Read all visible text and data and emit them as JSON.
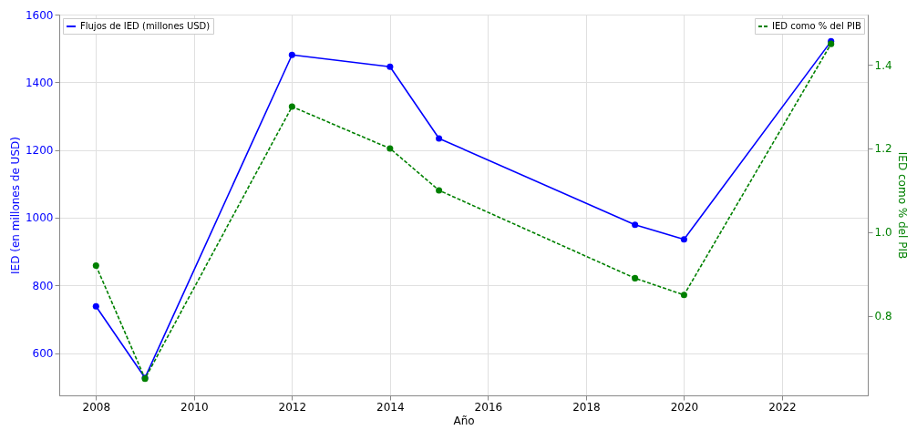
{
  "chart_data": {
    "type": "line",
    "xlabel": "Año",
    "ylabel": "IED (en millones de USD)",
    "y2label": "IED como % del PIB",
    "x": [
      2008,
      2009,
      2012,
      2014,
      2015,
      2019,
      2020,
      2023
    ],
    "xlim": [
      2007.25,
      2023.75
    ],
    "xticks": [
      2008,
      2010,
      2012,
      2014,
      2016,
      2018,
      2020,
      2022
    ],
    "ylim": [
      475,
      1600
    ],
    "yticks": [
      600,
      800,
      1000,
      1200,
      1400,
      1600
    ],
    "y2lim": [
      0.61,
      1.52
    ],
    "y2ticks": [
      {
        "value": 0.8,
        "label": "0.8"
      },
      {
        "value": 1.0,
        "label": "1.0"
      },
      {
        "value": 1.2,
        "label": "1.2"
      },
      {
        "value": 1.4,
        "label": "1.4"
      }
    ],
    "grid": true,
    "marker": "circle",
    "legend": "top",
    "series": [
      {
        "name": "Flujos de IED (millones USD)",
        "color": "#0000ff",
        "values": [
          738,
          527,
          1481,
          1446,
          1234,
          979,
          936,
          1521
        ],
        "line_style": "solid"
      },
      {
        "name": "IED como % del PIB",
        "color": "#008000",
        "values": [
          0.92,
          0.65,
          1.3,
          1.2,
          1.1,
          0.89,
          0.85,
          1.45
        ],
        "axis": "y2",
        "line_style": "dashed"
      }
    ]
  }
}
